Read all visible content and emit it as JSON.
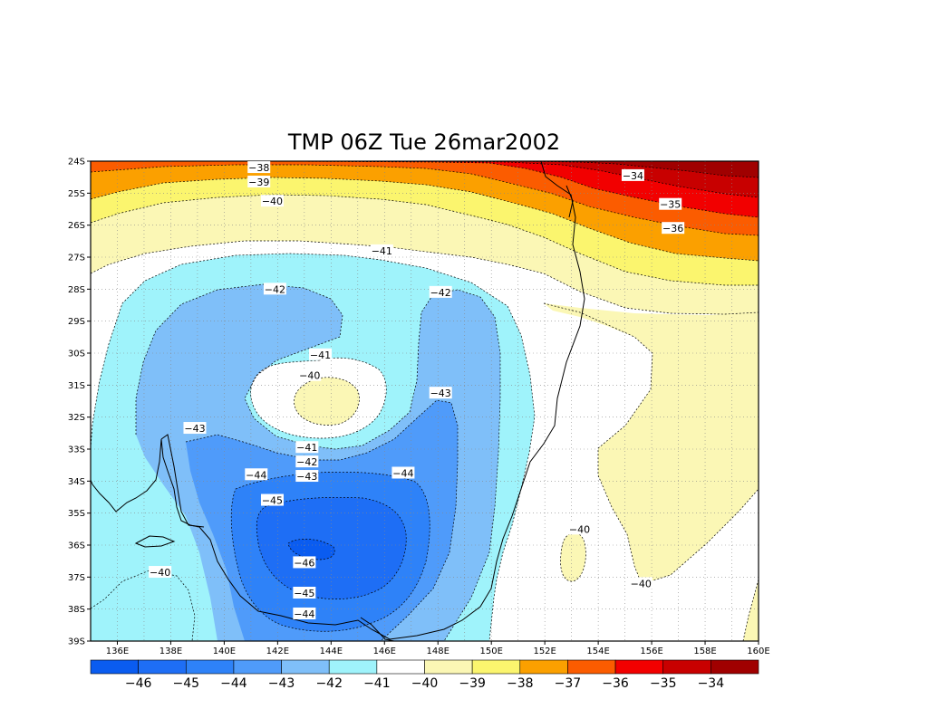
{
  "title": "TMP 06Z Tue 26mar2002",
  "map": {
    "lat_labels": [
      "24S",
      "25S",
      "26S",
      "27S",
      "28S",
      "29S",
      "30S",
      "31S",
      "32S",
      "33S",
      "34S",
      "35S",
      "36S",
      "37S",
      "38S",
      "39S"
    ],
    "lon_labels": [
      "136E",
      "138E",
      "140E",
      "142E",
      "144E",
      "146E",
      "148E",
      "150E",
      "152E",
      "154E",
      "156E",
      "158E",
      "160E"
    ],
    "lon_range": [
      135,
      160
    ],
    "lat_range": [
      -39,
      -24
    ],
    "grid": true
  },
  "contour_labels": [
    {
      "text": "-38",
      "lon": 141.3,
      "lat": -24.2
    },
    {
      "text": "-39",
      "lon": 141.3,
      "lat": -24.65
    },
    {
      "text": "-40",
      "lon": 141.8,
      "lat": -25.25
    },
    {
      "text": "-41",
      "lon": 145.9,
      "lat": -26.8
    },
    {
      "text": "-42",
      "lon": 141.9,
      "lat": -28.0
    },
    {
      "text": "-42",
      "lon": 148.1,
      "lat": -28.1
    },
    {
      "text": "-41",
      "lon": 143.6,
      "lat": -30.05
    },
    {
      "text": "-40",
      "lon": 143.2,
      "lat": -30.7
    },
    {
      "text": "-43",
      "lon": 148.1,
      "lat": -31.25
    },
    {
      "text": "-43",
      "lon": 138.9,
      "lat": -32.35
    },
    {
      "text": "-41",
      "lon": 143.1,
      "lat": -32.95
    },
    {
      "text": "-42",
      "lon": 143.1,
      "lat": -33.4
    },
    {
      "text": "-43",
      "lon": 143.1,
      "lat": -33.85
    },
    {
      "text": "-44",
      "lon": 141.2,
      "lat": -33.8
    },
    {
      "text": "-44",
      "lon": 146.7,
      "lat": -33.75
    },
    {
      "text": "-45",
      "lon": 141.8,
      "lat": -34.6
    },
    {
      "text": "-46",
      "lon": 143.0,
      "lat": -36.55
    },
    {
      "text": "-45",
      "lon": 143.0,
      "lat": -37.5
    },
    {
      "text": "-44",
      "lon": 143.0,
      "lat": -38.15
    },
    {
      "text": "-34",
      "lon": 155.3,
      "lat": -24.45
    },
    {
      "text": "-35",
      "lon": 156.7,
      "lat": -25.35
    },
    {
      "text": "-36",
      "lon": 156.8,
      "lat": -26.1
    },
    {
      "text": "-40",
      "lon": 153.3,
      "lat": -35.5
    },
    {
      "text": "-40",
      "lon": 137.6,
      "lat": -36.85
    },
    {
      "text": "-40",
      "lon": 155.6,
      "lat": -37.2
    }
  ],
  "colorbar": {
    "labels": [
      "-46",
      "-45",
      "-44",
      "-43",
      "-42",
      "-41",
      "-40",
      "-39",
      "-38",
      "-37",
      "-36",
      "-35",
      "-34"
    ],
    "colors": [
      "#0a5cf0",
      "#1e6ef5",
      "#2e82f8",
      "#4f9bfa",
      "#7fbff9",
      "#9ff3fb",
      "#ffffff",
      "#fbf7b5",
      "#fbf56e",
      "#fba000",
      "#fb5c00",
      "#f20000",
      "#c80000",
      "#a00000"
    ]
  },
  "fill_colors": {
    "n46": "#0a5cf0",
    "n45": "#1e6ef5",
    "n44": "#2e82f8",
    "n43": "#4f9bfa",
    "n42": "#7fbff9",
    "n41": "#9ff3fb",
    "n40": "#ffffff",
    "n39": "#fbf7b5",
    "n38": "#fbf56e",
    "n37": "#fba000",
    "n36": "#fb5c00",
    "n35": "#f20000",
    "n34": "#c80000",
    "n33": "#a00000"
  }
}
